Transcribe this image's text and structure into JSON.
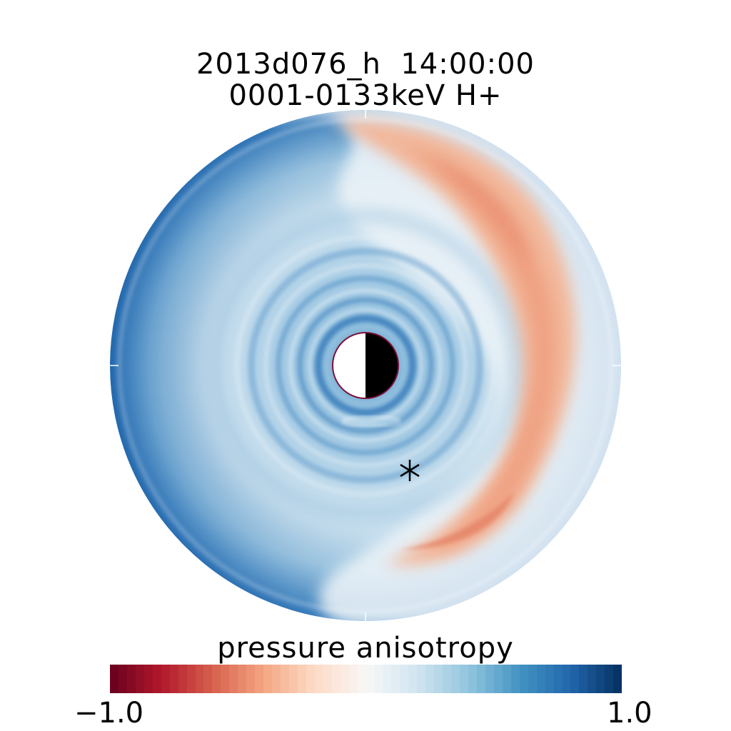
{
  "title": {
    "line1": "2013d076_h  14:00:00",
    "line2": "0001-0133keV H+"
  },
  "colorbar": {
    "label": "pressure anisotropy",
    "min_label": "−1.0",
    "max_label": "1.0",
    "range": [
      -1.0,
      1.0
    ],
    "colormap": "red-white-blue diverging",
    "colors": {
      "min": "#67001f",
      "mid": "#f7f7f7",
      "max": "#053061"
    }
  },
  "chart_data": {
    "type": "heatmap",
    "projection": "polar equatorial plane, Earth at center (dayside white, nightside black)",
    "title": "2013d076_h  14:00:00",
    "subtitle": "0001-0133keV H+",
    "colorbar_label": "pressure anisotropy",
    "value_range": [
      -1.0,
      1.0
    ],
    "regions": [
      {
        "description": "dusk / post-midnight outer crescent",
        "approx_value": -0.3
      },
      {
        "description": "dawn / noon outer region",
        "approx_value": 0.6
      },
      {
        "description": "inner ring structure near Earth",
        "approx_value": 0.4
      }
    ],
    "marker": {
      "symbol": "asterisk"
    }
  }
}
